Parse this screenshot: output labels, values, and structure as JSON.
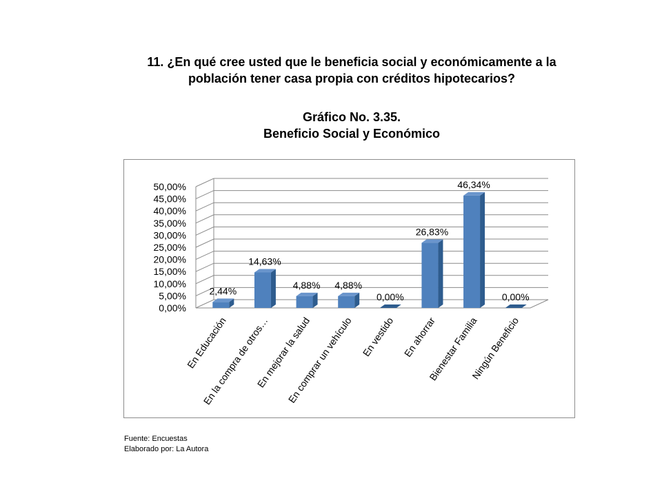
{
  "header": {
    "question_line1": "11. ¿En qué cree usted que le beneficia social y económicamente a la",
    "question_line2": "población tener casa propia con créditos hipotecarios?",
    "chart_number": "Gráfico No. 3.35.",
    "chart_title": "Beneficio Social y Económico"
  },
  "chart_data": {
    "type": "bar",
    "style": "3d-column",
    "categories": [
      "En Educación",
      "En la compra de otros…",
      "En mejorar la salud",
      "En comprar un vehículo",
      "En vestido",
      "En ahorrar",
      "Bienestar Familia",
      "Ningún Beneficio"
    ],
    "values": [
      2.44,
      14.63,
      4.88,
      4.88,
      0.0,
      26.83,
      46.34,
      0.0
    ],
    "data_labels": [
      "2,44%",
      "14,63%",
      "4,88%",
      "4,88%",
      "0,00%",
      "26,83%",
      "46,34%",
      "0,00%"
    ],
    "y_ticks": [
      "0,00%",
      "5,00%",
      "10,00%",
      "15,00%",
      "20,00%",
      "25,00%",
      "30,00%",
      "35,00%",
      "40,00%",
      "45,00%",
      "50,00%"
    ],
    "ylim": [
      0,
      50
    ],
    "grid": true,
    "legend": "none",
    "colors": {
      "bar_front": "#4F81BD",
      "bar_side": "#2E5C8E",
      "bar_top": "#6A95CC",
      "grid": "#8a8a8a"
    }
  },
  "footer": {
    "source": "Fuente: Encuestas",
    "author": "Elaborado por: La Autora"
  }
}
